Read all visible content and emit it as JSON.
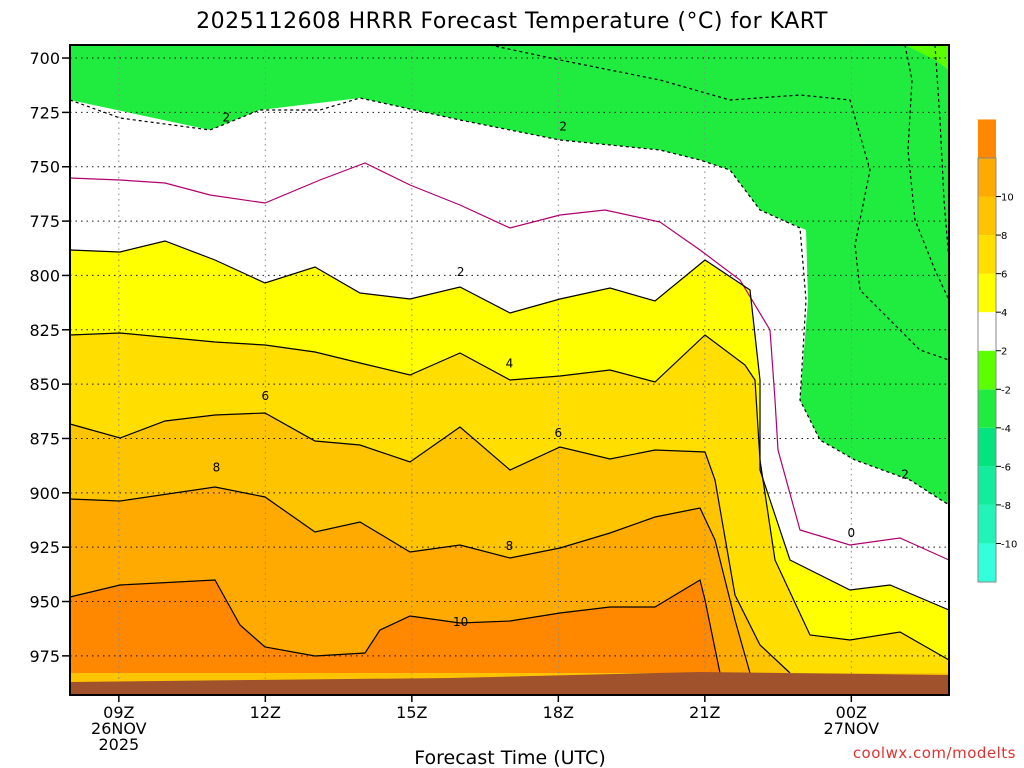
{
  "chart_data": {
    "type": "contour",
    "title": "2025112608 HRRR Forecast Temperature (°C) for KART",
    "xlabel": "Forecast Time (UTC)",
    "ylabel": "",
    "x_ticks": [
      {
        "hour": 9,
        "lines": [
          "09Z",
          "26NOV",
          "2025"
        ]
      },
      {
        "hour": 12,
        "lines": [
          "12Z"
        ]
      },
      {
        "hour": 15,
        "lines": [
          "15Z"
        ]
      },
      {
        "hour": 18,
        "lines": [
          "18Z"
        ]
      },
      {
        "hour": 21,
        "lines": [
          "21Z"
        ]
      },
      {
        "hour": 24,
        "lines": [
          "00Z",
          "27NOV"
        ]
      }
    ],
    "xlim": [
      8,
      26
    ],
    "y_ticks": [
      700,
      725,
      750,
      775,
      800,
      825,
      850,
      875,
      900,
      925,
      950,
      975
    ],
    "ylim": [
      993,
      694
    ],
    "colorbar": {
      "bounds": [
        -12,
        -10,
        -8,
        -6,
        -4,
        -2,
        2,
        4,
        6,
        8,
        10,
        12
      ],
      "tick_labels": [
        "-10",
        "-8",
        "-6",
        "-4",
        "-2",
        "2",
        "4",
        "6",
        "8",
        "10"
      ],
      "colors": [
        "#33ffdd",
        "#22f3b9",
        "#14eb9c",
        "#05e37e",
        "#20ec40",
        "#5cff00",
        "#ffffff",
        "#ffff00",
        "#ffde00",
        "#ffc400",
        "#ffaa00",
        "#ff8800"
      ]
    },
    "contour_labels": [
      {
        "text": "2",
        "x": 11.2,
        "p": 727
      },
      {
        "text": "2",
        "x": 18.1,
        "p": 731
      },
      {
        "text": "2",
        "x": 16.0,
        "p": 798
      },
      {
        "text": "4",
        "x": 17.0,
        "p": 840
      },
      {
        "text": "6",
        "x": 12.0,
        "p": 855
      },
      {
        "text": "6",
        "x": 18.0,
        "p": 872
      },
      {
        "text": "8",
        "x": 11.0,
        "p": 888
      },
      {
        "text": "8",
        "x": 17.0,
        "p": 924
      },
      {
        "text": "10",
        "x": 16.0,
        "p": 959
      },
      {
        "text": "0",
        "x": 24.0,
        "p": 918
      },
      {
        "text": "2",
        "x": 25.1,
        "p": 891
      }
    ],
    "credit": "coolwx.com/modelts",
    "ground_color": "#a0522d"
  }
}
